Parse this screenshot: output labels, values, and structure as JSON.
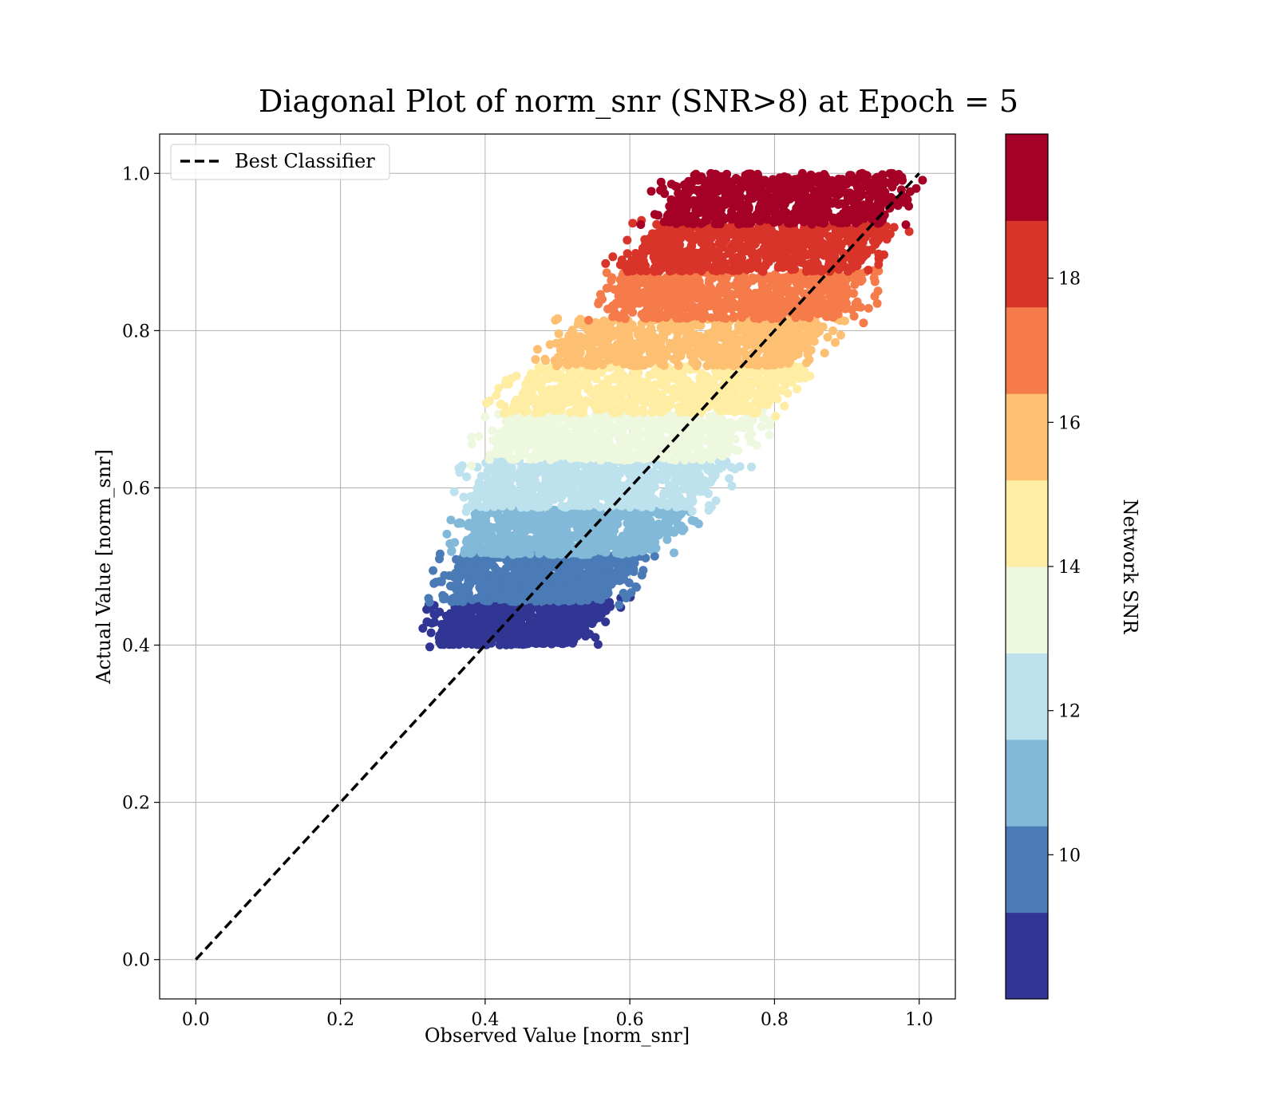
{
  "chart_data": {
    "type": "scatter",
    "title": "Diagonal Plot of norm_snr (SNR>8) at Epoch = 5",
    "xlabel": "Observed Value [norm_snr]",
    "ylabel": "Actual Value [norm_snr]",
    "xlim": [
      -0.05,
      1.05
    ],
    "ylim": [
      -0.05,
      1.05
    ],
    "grid": true,
    "legend": {
      "placement": "top-left",
      "entries": [
        "Best Classifier"
      ]
    },
    "x_ticks": [
      "0.0",
      "0.2",
      "0.4",
      "0.6",
      "0.8",
      "1.0"
    ],
    "y_ticks": [
      "0.0",
      "0.2",
      "0.4",
      "0.6",
      "0.8",
      "1.0"
    ],
    "reference_line": {
      "name": "Best Classifier",
      "x": [
        0.0,
        1.0
      ],
      "y": [
        0.0,
        1.0
      ],
      "style": "dashed",
      "color": "#000000"
    },
    "colorbar": {
      "label": "Network SNR",
      "range": [
        8,
        20
      ],
      "ticks": [
        "10",
        "12",
        "14",
        "16",
        "18"
      ],
      "tick_values": [
        10,
        12,
        14,
        16,
        18
      ],
      "colors": [
        "#313695",
        "#4a7bb7",
        "#82b9d8",
        "#bde2ee",
        "#eef8df",
        "#feeda2",
        "#fdbf71",
        "#f57b4b",
        "#d93429",
        "#a50026"
      ]
    },
    "bands": [
      {
        "snr_range": [
          8.0,
          9.2
        ],
        "y_range": [
          0.4,
          0.455
        ],
        "x_min": [
          0.33,
          0.36
        ],
        "x_max": [
          0.52,
          0.58
        ]
      },
      {
        "snr_range": [
          9.2,
          10.4
        ],
        "y_range": [
          0.455,
          0.515
        ],
        "x_min": [
          0.34,
          0.37
        ],
        "x_max": [
          0.56,
          0.62
        ]
      },
      {
        "snr_range": [
          10.4,
          11.6
        ],
        "y_range": [
          0.515,
          0.575
        ],
        "x_min": [
          0.37,
          0.38
        ],
        "x_max": [
          0.62,
          0.68
        ]
      },
      {
        "snr_range": [
          11.6,
          12.8
        ],
        "y_range": [
          0.575,
          0.635
        ],
        "x_min": [
          0.38,
          0.4
        ],
        "x_max": [
          0.68,
          0.74
        ]
      },
      {
        "snr_range": [
          12.8,
          14.0
        ],
        "y_range": [
          0.635,
          0.695
        ],
        "x_min": [
          0.4,
          0.43
        ],
        "x_max": [
          0.72,
          0.78
        ]
      },
      {
        "snr_range": [
          14.0,
          15.2
        ],
        "y_range": [
          0.695,
          0.755
        ],
        "x_min": [
          0.43,
          0.47
        ],
        "x_max": [
          0.78,
          0.84
        ]
      },
      {
        "snr_range": [
          15.2,
          16.4
        ],
        "y_range": [
          0.755,
          0.815
        ],
        "x_min": [
          0.49,
          0.53
        ],
        "x_max": [
          0.82,
          0.88
        ]
      },
      {
        "snr_range": [
          16.4,
          17.6
        ],
        "y_range": [
          0.815,
          0.875
        ],
        "x_min": [
          0.57,
          0.59
        ],
        "x_max": [
          0.89,
          0.93
        ]
      },
      {
        "snr_range": [
          17.6,
          18.8
        ],
        "y_range": [
          0.875,
          0.935
        ],
        "x_min": [
          0.59,
          0.64
        ],
        "x_max": [
          0.91,
          0.96
        ]
      },
      {
        "snr_range": [
          18.8,
          20.0
        ],
        "y_range": [
          0.935,
          1.0
        ],
        "x_min": [
          0.64,
          0.68
        ],
        "x_max": [
          0.95,
          0.98
        ]
      }
    ]
  }
}
